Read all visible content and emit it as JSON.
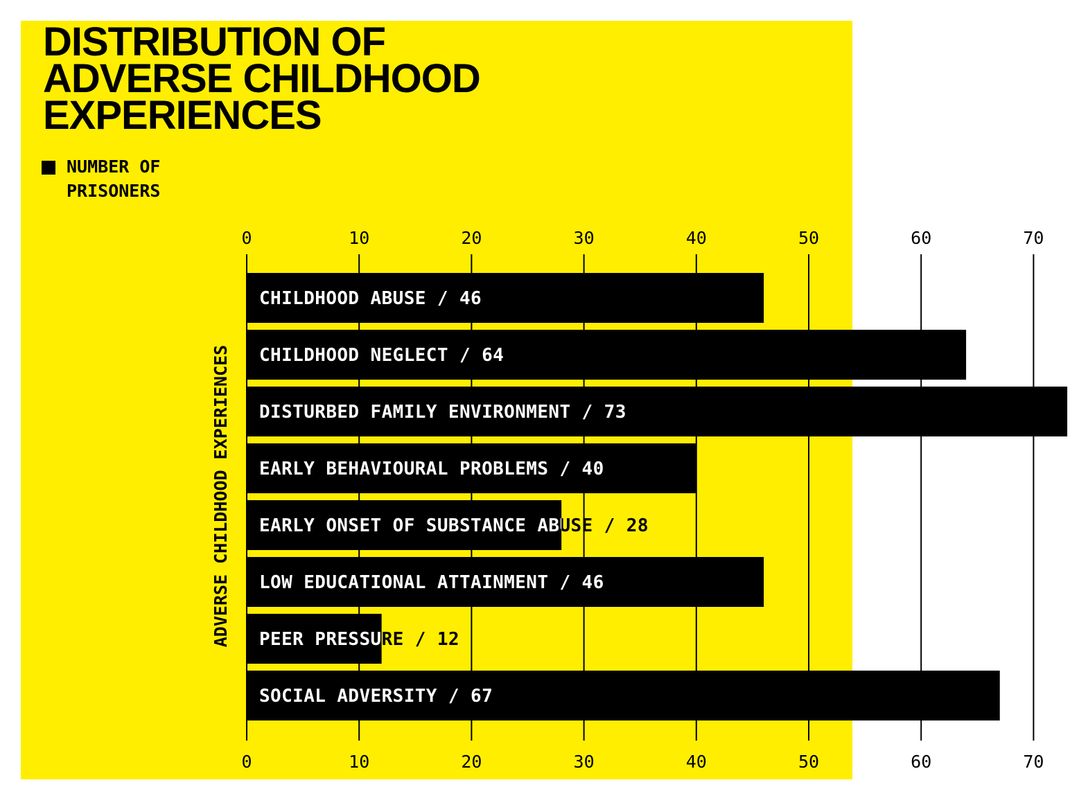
{
  "colors": {
    "panel": "#ffee00",
    "bar": "#000000",
    "background": "#ffffff",
    "bar_text": "#ffffff",
    "outside_text": "#000000"
  },
  "title_lines": [
    "DISTRIBUTION OF",
    "ADVERSE CHILDHOOD",
    "EXPERIENCES"
  ],
  "legend": {
    "label": "NUMBER OF PRISONERS"
  },
  "chart_data": {
    "type": "bar",
    "orientation": "horizontal",
    "title": "DISTRIBUTION OF ADVERSE CHILDHOOD EXPERIENCES",
    "ylabel": "ADVERSE CHILDHOOD EXPERIENCES",
    "xlabel": "",
    "xlim": [
      0,
      70
    ],
    "xticks": [
      0,
      10,
      20,
      30,
      40,
      50,
      60,
      70
    ],
    "grid": true,
    "legend_position": "top-left",
    "series": [
      {
        "name": "NUMBER OF PRISONERS",
        "values": [
          46,
          64,
          73,
          40,
          28,
          46,
          12,
          67
        ]
      }
    ],
    "categories": [
      "CHILDHOOD ABUSE",
      "CHILDHOOD NEGLECT",
      "DISTURBED FAMILY ENVIRONMENT",
      "EARLY BEHAVIOURAL PROBLEMS",
      "EARLY ONSET OF SUBSTANCE ABUSE",
      "LOW EDUCATIONAL ATTAINMENT",
      "PEER PRESSURE",
      "SOCIAL ADVERSITY"
    ],
    "bar_labels": [
      "CHILDHOOD ABUSE / 46",
      "CHILDHOOD NEGLECT / 64",
      "DISTURBED FAMILY ENVIRONMENT / 73",
      "EARLY BEHAVIOURAL PROBLEMS / 40",
      "EARLY ONSET OF SUBSTANCE ABUSE / 28",
      "LOW EDUCATIONAL ATTAINMENT / 46",
      "PEER PRESSURE / 12",
      "SOCIAL ADVERSITY / 67"
    ]
  }
}
